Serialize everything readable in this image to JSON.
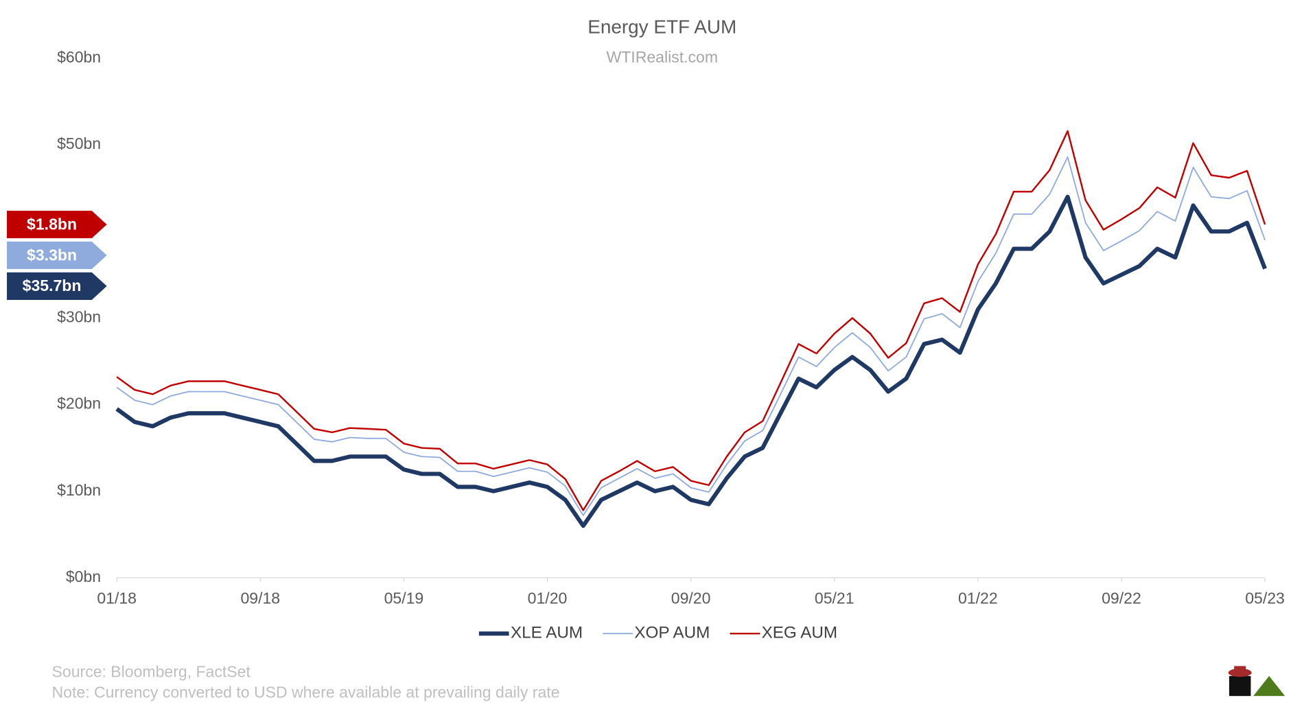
{
  "chart_data": {
    "type": "stacked-line",
    "title": "Energy ETF AUM",
    "subtitle": "WTIRealist.com",
    "x": [
      "2018-01",
      "2018-02",
      "2018-03",
      "2018-04",
      "2018-05",
      "2018-06",
      "2018-07",
      "2018-08",
      "2018-09",
      "2018-10",
      "2018-11",
      "2018-12",
      "2019-01",
      "2019-02",
      "2019-03",
      "2019-04",
      "2019-05",
      "2019-06",
      "2019-07",
      "2019-08",
      "2019-09",
      "2019-10",
      "2019-11",
      "2019-12",
      "2020-01",
      "2020-02",
      "2020-03",
      "2020-04",
      "2020-05",
      "2020-06",
      "2020-07",
      "2020-08",
      "2020-09",
      "2020-10",
      "2020-11",
      "2020-12",
      "2021-01",
      "2021-02",
      "2021-03",
      "2021-04",
      "2021-05",
      "2021-06",
      "2021-07",
      "2021-08",
      "2021-09",
      "2021-10",
      "2021-11",
      "2021-12",
      "2022-01",
      "2022-02",
      "2022-03",
      "2022-04",
      "2022-05",
      "2022-06",
      "2022-07",
      "2022-08",
      "2022-09",
      "2022-10",
      "2022-11",
      "2022-12",
      "2023-01",
      "2023-02",
      "2023-03",
      "2023-04",
      "2023-05"
    ],
    "series": [
      {
        "name": "XLE AUM",
        "color": "#1f3864",
        "width": 5,
        "end_label": "$35.7bn",
        "label_text_color": "#ffffff",
        "values": [
          19.5,
          18,
          17.5,
          18.5,
          19,
          19,
          19,
          18.5,
          18,
          17.5,
          15.5,
          13.5,
          13.5,
          14,
          14,
          14,
          12.5,
          12,
          12,
          10.5,
          10.5,
          10,
          10.5,
          11,
          10.5,
          9,
          6,
          9,
          10,
          11,
          10,
          10.5,
          9,
          8.5,
          11.5,
          14,
          15,
          19,
          23,
          22,
          24,
          25.5,
          24,
          21.5,
          23,
          27,
          27.5,
          26,
          31,
          34,
          38,
          38,
          40,
          44,
          37,
          34,
          35,
          36,
          38,
          37,
          43,
          40,
          40,
          41,
          35.7
        ]
      },
      {
        "name": "XOP AUM",
        "color": "#8faadc",
        "width": 1.5,
        "end_label": "$3.3bn",
        "label_text_color": "#ffffff",
        "values": [
          2.5,
          2.5,
          2.5,
          2.5,
          2.5,
          2.5,
          2.5,
          2.5,
          2.5,
          2.5,
          2.5,
          2.5,
          2.2,
          2.2,
          2.1,
          2.1,
          2.0,
          2.0,
          1.9,
          1.8,
          1.8,
          1.7,
          1.7,
          1.7,
          1.7,
          1.6,
          1.2,
          1.4,
          1.5,
          1.6,
          1.5,
          1.5,
          1.4,
          1.4,
          1.6,
          1.8,
          2.0,
          2.2,
          2.5,
          2.4,
          2.6,
          2.8,
          2.6,
          2.4,
          2.5,
          2.9,
          3.0,
          2.9,
          3.2,
          3.5,
          4.0,
          4.0,
          4.3,
          4.6,
          4.0,
          3.8,
          3.9,
          4.1,
          4.3,
          4.2,
          4.4,
          4.0,
          3.8,
          3.7,
          3.3
        ]
      },
      {
        "name": "XEG AUM",
        "color": "#c00000",
        "width": 2,
        "end_label": "$1.8bn",
        "label_text_color": "#ffffff",
        "values": [
          1.2,
          1.2,
          1.2,
          1.2,
          1.2,
          1.2,
          1.2,
          1.2,
          1.2,
          1.2,
          1.2,
          1.2,
          1.1,
          1.1,
          1.1,
          1.0,
          1.0,
          1.0,
          1.0,
          0.9,
          0.9,
          0.9,
          0.9,
          0.9,
          0.9,
          0.8,
          0.6,
          0.8,
          0.8,
          0.9,
          0.8,
          0.8,
          0.8,
          0.8,
          0.9,
          1.0,
          1.1,
          1.3,
          1.5,
          1.5,
          1.6,
          1.7,
          1.6,
          1.5,
          1.6,
          1.8,
          1.8,
          1.8,
          2.0,
          2.2,
          2.6,
          2.6,
          2.8,
          3.0,
          2.6,
          2.4,
          2.5,
          2.6,
          2.8,
          2.7,
          2.8,
          2.5,
          2.4,
          2.3,
          1.8
        ]
      }
    ],
    "xlim": [
      "2018-01",
      "2023-05"
    ],
    "xticks": [
      {
        "value": "2018-01",
        "label": "01/18"
      },
      {
        "value": "2018-09",
        "label": "09/18"
      },
      {
        "value": "2019-05",
        "label": "05/19"
      },
      {
        "value": "2020-01",
        "label": "01/20"
      },
      {
        "value": "2020-09",
        "label": "09/20"
      },
      {
        "value": "2021-05",
        "label": "05/21"
      },
      {
        "value": "2022-01",
        "label": "01/22"
      },
      {
        "value": "2022-09",
        "label": "09/22"
      },
      {
        "value": "2023-05",
        "label": "05/23"
      }
    ],
    "ylim": [
      0,
      60
    ],
    "yticks": [
      {
        "value": 0,
        "label": "$0bn"
      },
      {
        "value": 10,
        "label": "$10bn"
      },
      {
        "value": 20,
        "label": "$20bn"
      },
      {
        "value": 30,
        "label": "$30bn"
      },
      {
        "value": 50,
        "label": "$50bn"
      },
      {
        "value": 60,
        "label": "$60bn"
      }
    ],
    "stacked": true,
    "grid": false,
    "legend": "bottom",
    "source": "Source: Bloomberg, FactSet",
    "note": "Note: Currency converted to USD where available at prevailing daily rate"
  }
}
